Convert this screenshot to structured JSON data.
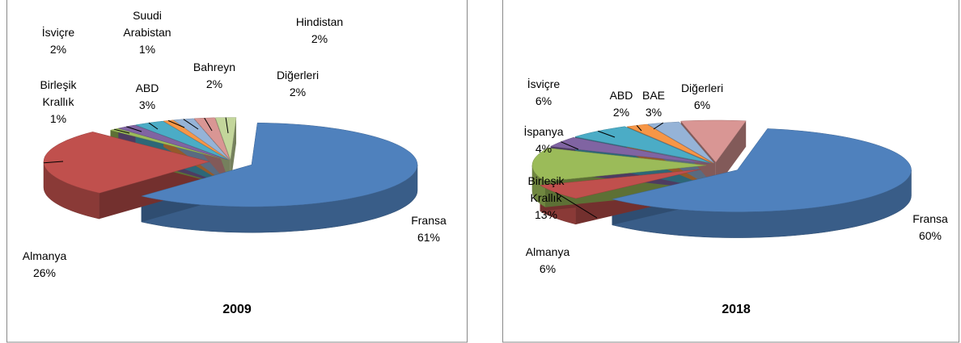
{
  "chart_data": [
    {
      "type": "pie",
      "title": "2009",
      "categories": [
        "Fransa",
        "Almanya",
        "Birleşik Krallık",
        "İsviçre",
        "ABD",
        "Suudi Arabistan",
        "Bahreyn",
        "Hindistan",
        "Diğerleri"
      ],
      "values": [
        61,
        26,
        1,
        2,
        3,
        1,
        2,
        2,
        2
      ],
      "value_labels": [
        "61%",
        "26%",
        "1%",
        "2%",
        "3%",
        "1%",
        "2%",
        "2%",
        "2%"
      ],
      "colors": [
        "#4f81bd",
        "#c0504d",
        "#9bbb59",
        "#8064a2",
        "#4bacc6",
        "#f79646",
        "#95b3d7",
        "#d99694",
        "#c3d69b"
      ]
    },
    {
      "type": "pie",
      "title": "2018",
      "categories": [
        "Fransa",
        "Almanya",
        "Birleşik Krallık",
        "İspanya",
        "İsviçre",
        "ABD",
        "BAE",
        "Diğerleri"
      ],
      "values": [
        60,
        6,
        13,
        4,
        6,
        2,
        3,
        6
      ],
      "value_labels": [
        "60%",
        "6%",
        "13%",
        "4%",
        "6%",
        "2%",
        "3%",
        "6%"
      ],
      "colors": [
        "#4f81bd",
        "#c0504d",
        "#9bbb59",
        "#8064a2",
        "#4bacc6",
        "#f79646",
        "#95b3d7",
        "#d99694"
      ]
    }
  ]
}
